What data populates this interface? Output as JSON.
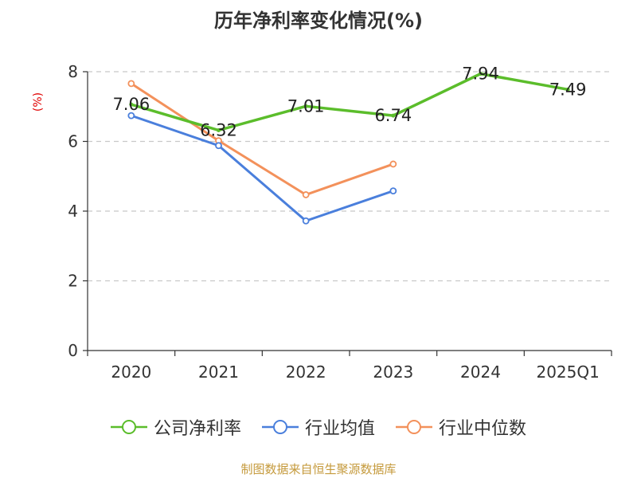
{
  "title": "历年净利率变化情况(%)",
  "source": "制图数据来自恒生聚源数据库",
  "colors": {
    "green": "#5bbd2b",
    "blue": "#4a7fdc",
    "orange": "#f3915b",
    "ylabel": "#e00000"
  },
  "chart_data": {
    "type": "line",
    "title": "历年净利率变化情况(%)",
    "ylabel": "(%)",
    "xlabel": "",
    "categories": [
      "2020",
      "2021",
      "2022",
      "2023",
      "2024",
      "2025Q1"
    ],
    "ylim": [
      0,
      8
    ],
    "yticks": [
      0,
      2,
      4,
      6,
      8
    ],
    "grid": true,
    "legend_position": "bottom",
    "series": [
      {
        "name": "公司净利率",
        "color": "#5bbd2b",
        "values": [
          7.06,
          6.32,
          7.01,
          6.74,
          7.94,
          7.49
        ],
        "labels": [
          "7.06",
          "6.32",
          "7.01",
          "6.74",
          "7.94",
          "7.49"
        ]
      },
      {
        "name": "行业均值",
        "color": "#4a7fdc",
        "values": [
          6.74,
          5.88,
          3.72,
          4.58,
          null,
          null
        ]
      },
      {
        "name": "行业中位数",
        "color": "#f3915b",
        "values": [
          7.66,
          6.02,
          4.47,
          5.35,
          null,
          null
        ]
      }
    ]
  }
}
